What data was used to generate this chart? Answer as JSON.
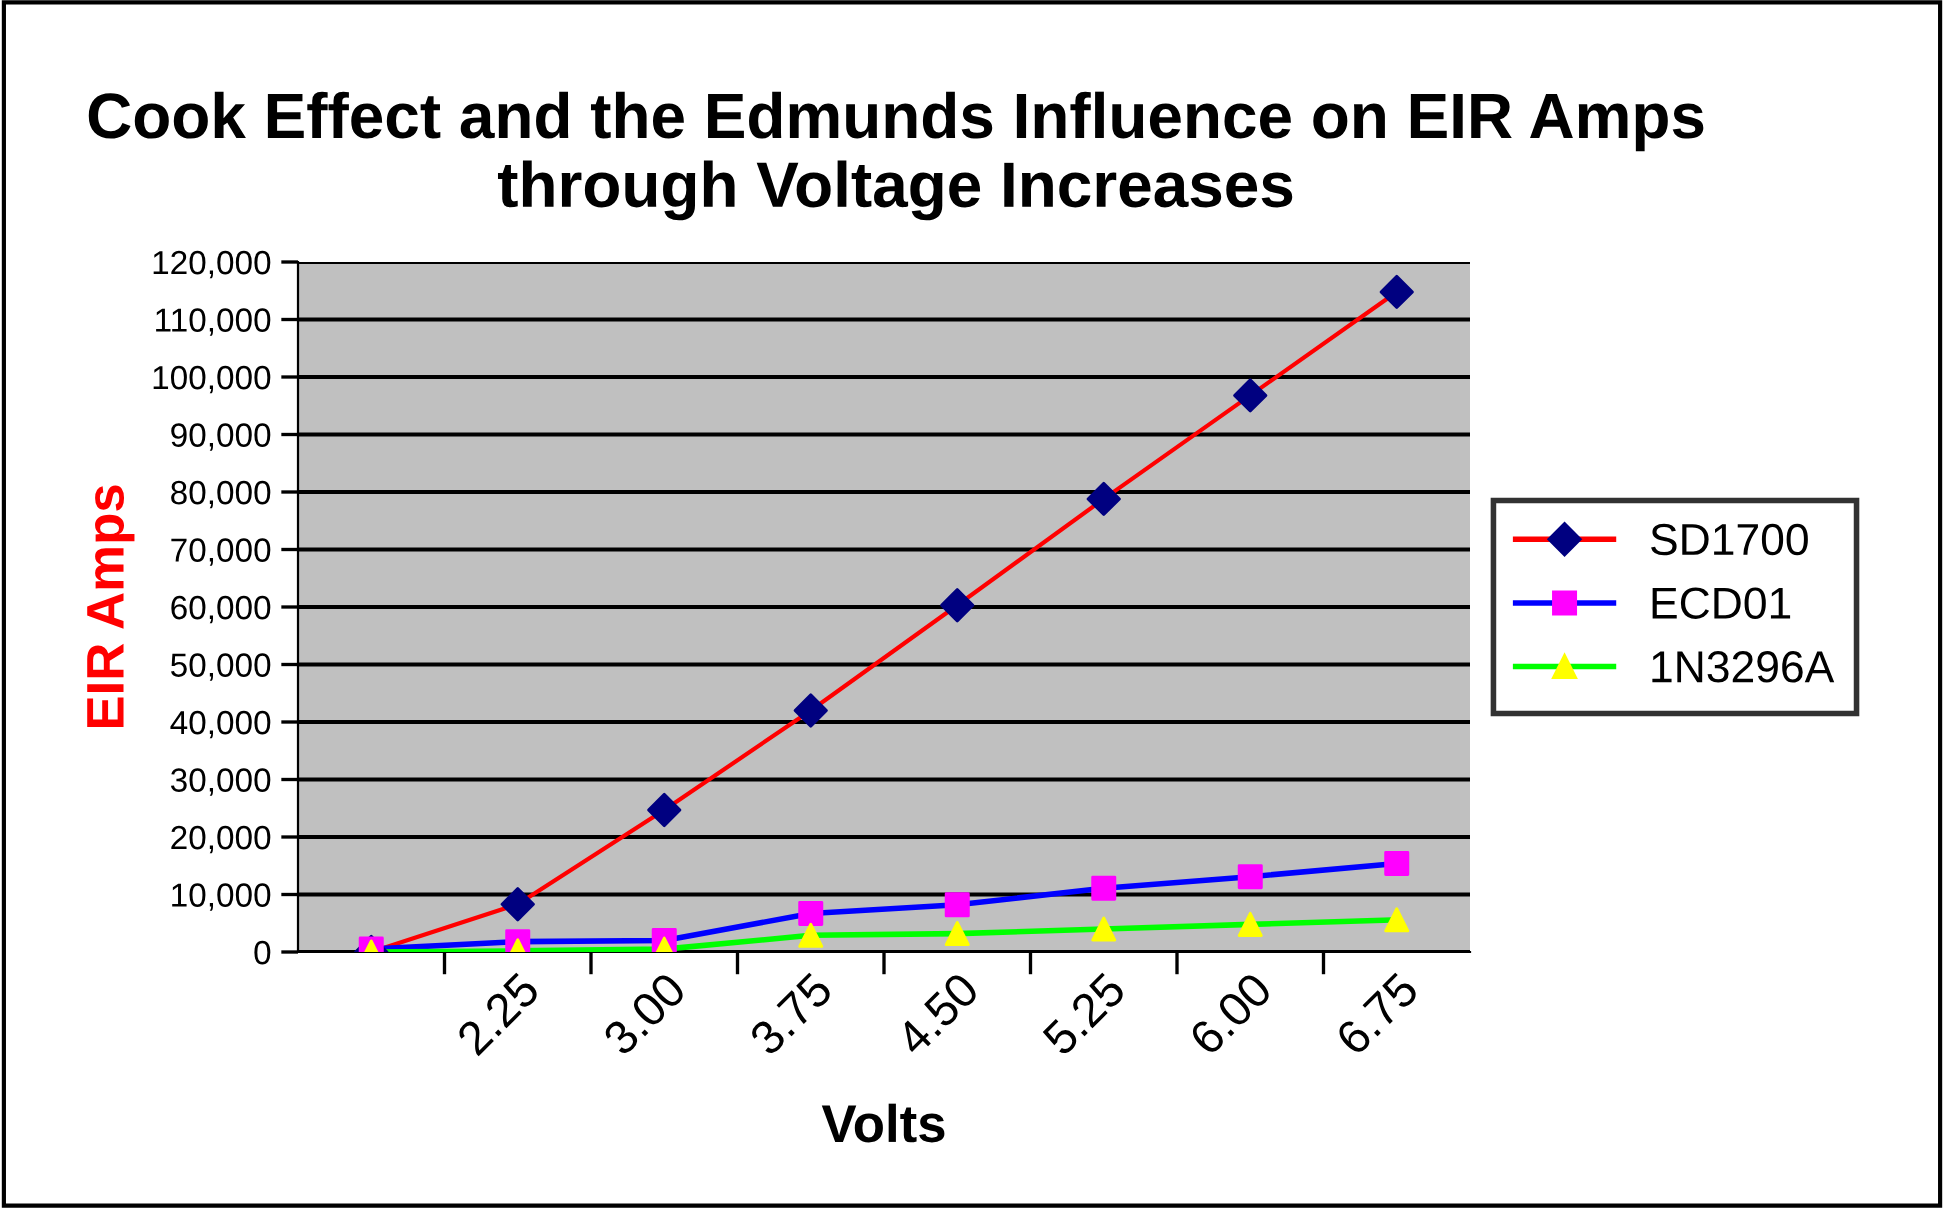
{
  "chart_data": {
    "type": "line",
    "title": "Cook Effect and the Edmunds Influence on EIR Amps through Voltage Increases",
    "xlabel": "Volts",
    "ylabel": "EIR Amps",
    "categories": [
      null,
      "2.25",
      "3.00",
      "3.75",
      "4.50",
      "5.25",
      "6.00",
      "6.75"
    ],
    "series": [
      {
        "name": "SD1700",
        "color": "#ff0000",
        "colors": [
          "#000080",
          "#000080",
          "#000080",
          "#000080",
          "#000080",
          "#000080",
          "#000080",
          "#000080"
        ],
        "marker": "diamond",
        "values": [
          0,
          8300,
          24700,
          42000,
          60300,
          78800,
          96800,
          114800
        ]
      },
      {
        "name": "ECD01",
        "color": "#0000ff",
        "colors": [
          "#ff00ff",
          "#ff00ff",
          "#ff00ff",
          "#ff00ff",
          "#ff00ff",
          "#ff00ff",
          "#ff00ff",
          "#ff00ff"
        ],
        "marker": "square",
        "values": [
          500,
          1800,
          2000,
          6700,
          8200,
          11100,
          13100,
          15400
        ]
      },
      {
        "name": "1N3296A",
        "color": "#00ff00",
        "colors": [
          "#ffff00",
          "#ffff00",
          "#ffff00",
          "#ffff00",
          "#ffff00",
          "#ffff00",
          "#ffff00",
          "#ffff00"
        ],
        "marker": "triangle",
        "values": [
          0,
          200,
          500,
          2900,
          3200,
          4000,
          4800,
          5600
        ]
      }
    ],
    "ylim": [
      0,
      120000
    ],
    "yticks": [
      0,
      {
        "value": 10000,
        "label": "10,000"
      },
      {
        "value": 20000,
        "label": "20,000"
      },
      {
        "value": 30000,
        "label": "30,000"
      },
      {
        "value": 40000,
        "label": "40,000"
      },
      {
        "value": 50000,
        "label": "50,000"
      },
      {
        "value": 60000,
        "label": "60,000"
      },
      {
        "value": 70000,
        "label": "70,000"
      },
      {
        "value": 80000,
        "label": "80,000"
      },
      {
        "value": 90000,
        "label": "90,000"
      },
      {
        "value": 100000,
        "label": "100,000"
      },
      {
        "value": 110000,
        "label": "110,000"
      },
      {
        "value": 120000,
        "label": "120,000"
      }
    ],
    "grid": "y",
    "legend": "right"
  }
}
